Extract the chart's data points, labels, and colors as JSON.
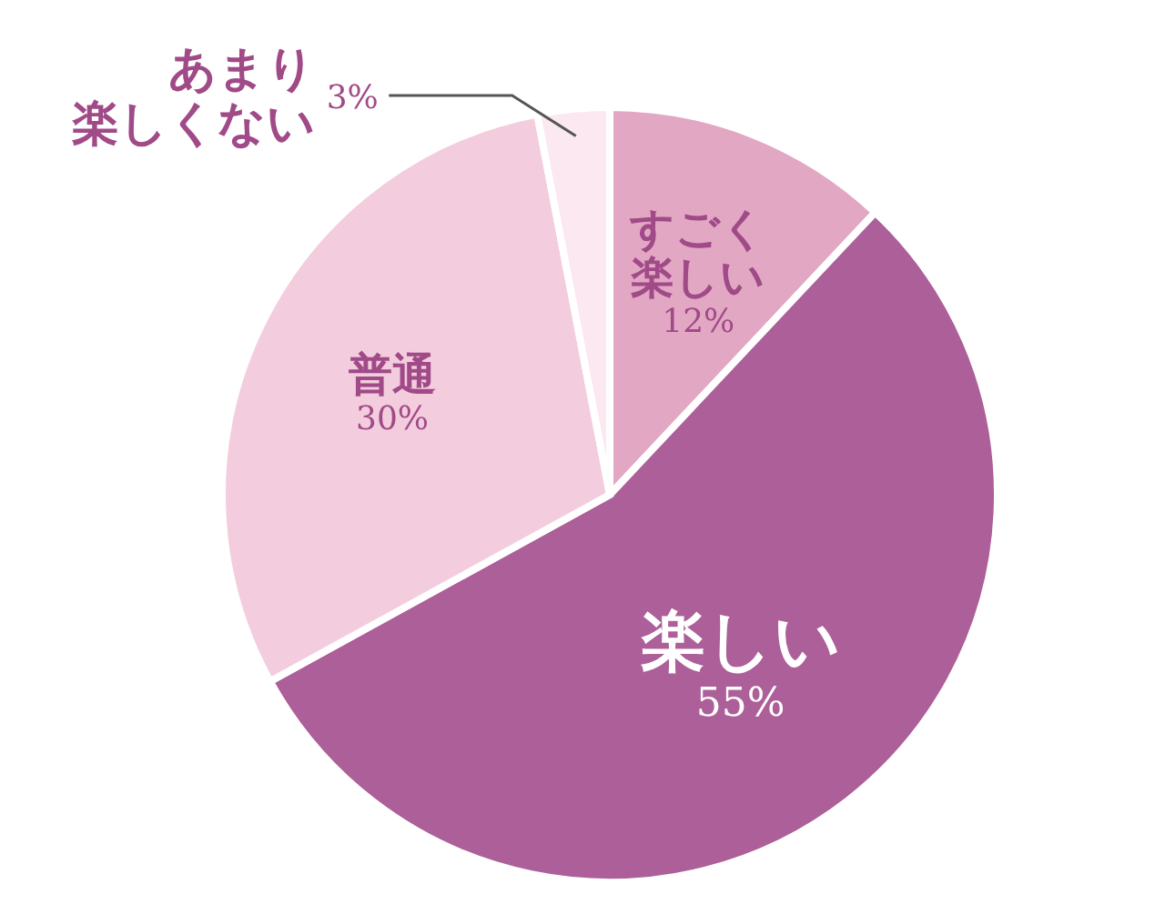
{
  "chart_data": {
    "type": "pie",
    "categories": [
      "すごく楽しい",
      "楽しい",
      "普通",
      "あまり楽しくない"
    ],
    "values": [
      12,
      55,
      30,
      3
    ],
    "value_labels": [
      "12%",
      "55%",
      "30%",
      "3%"
    ],
    "colors": [
      "#e2a7c3",
      "#ac5f98",
      "#f3cddd",
      "#fbe8f0"
    ]
  }
}
